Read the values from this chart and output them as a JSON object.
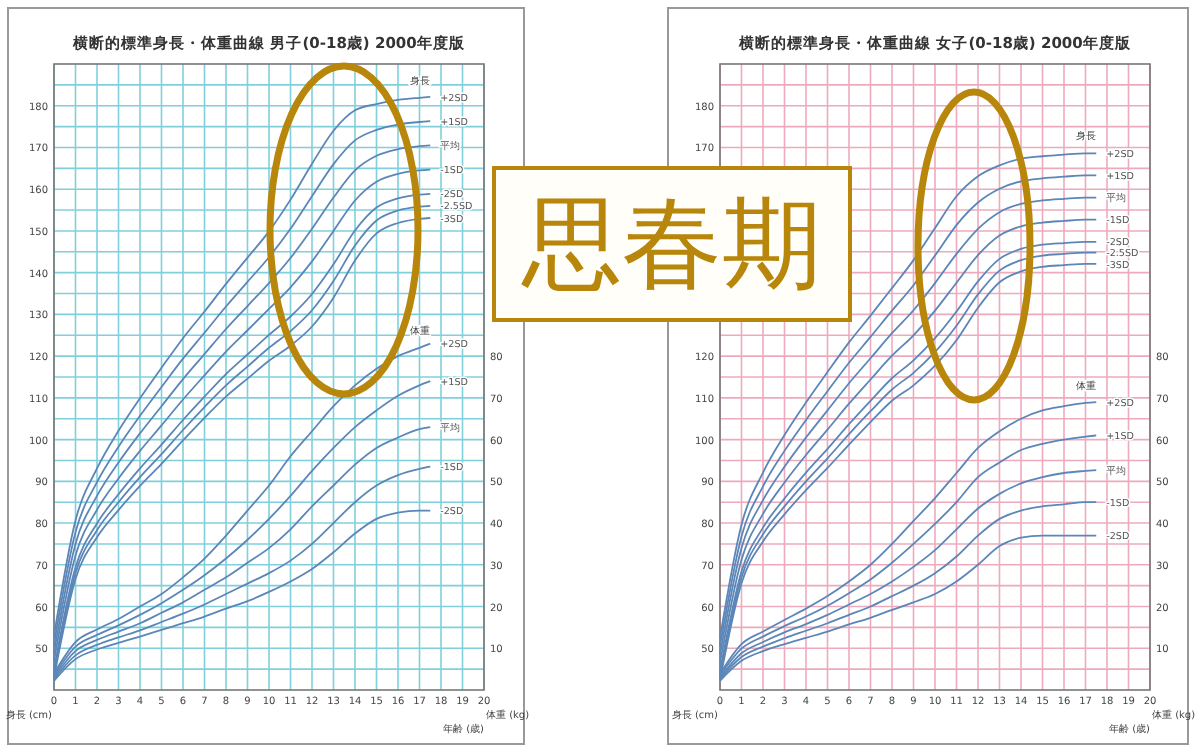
{
  "chart_data": [
    {
      "type": "line",
      "title": "横断的標準身長・体重曲線 男子(0-18歳) 2000年度版",
      "xlabel": "年齢 (歳)",
      "ylabel": "身長 (cm)",
      "y2label": "体重 (kg)",
      "grid": true,
      "x": [
        0,
        1,
        2,
        3,
        4,
        5,
        6,
        7,
        8,
        9,
        10,
        11,
        12,
        13,
        14,
        15,
        16,
        17,
        17.5
      ],
      "xlim": [
        0,
        20
      ],
      "xticks": [
        0,
        1,
        2,
        3,
        4,
        5,
        6,
        7,
        8,
        9,
        10,
        11,
        12,
        13,
        14,
        15,
        16,
        17,
        18,
        19,
        20
      ],
      "ylim": [
        40,
        190
      ],
      "yticks": [
        {
          "value": 45,
          "label": null
        },
        50,
        {
          "value": 55,
          "label": null
        },
        60,
        {
          "value": 65,
          "label": null
        },
        70,
        {
          "value": 75,
          "label": null
        },
        80,
        {
          "value": 85,
          "label": null
        },
        90,
        {
          "value": 95,
          "label": null
        },
        100,
        {
          "value": 105,
          "label": null
        },
        110,
        {
          "value": 115,
          "label": null
        },
        120,
        {
          "value": 125,
          "label": null
        },
        130,
        {
          "value": 135,
          "label": null
        },
        140,
        {
          "value": 145,
          "label": null
        },
        150,
        {
          "value": 155,
          "label": null
        },
        160,
        {
          "value": 165,
          "label": null
        },
        170,
        {
          "value": 175,
          "label": null
        },
        180,
        {
          "value": 185,
          "label": null
        }
      ],
      "y2lim": [
        0,
        150
      ],
      "y2ticks": [
        10,
        20,
        30,
        40,
        50,
        60,
        70,
        80
      ],
      "annotations": [
        "身長",
        "体重"
      ],
      "series": [
        {
          "name": "+2SD",
          "color": "#5b86b8",
          "values": [
            53,
            80.6,
            93.1,
            102.1,
            109.9,
            117.2,
            124.3,
            130.7,
            137.3,
            143.6,
            149.9,
            157.5,
            166.1,
            174,
            178.9,
            180.4,
            181.4,
            181.9,
            182.1
          ]
        },
        {
          "name": "+1SD",
          "color": "#5b86b8",
          "values": [
            51,
            77.8,
            89.8,
            98.3,
            105.7,
            112.6,
            119.4,
            125.6,
            131.9,
            137.8,
            143.7,
            150.5,
            158.3,
            166,
            171.7,
            174.2,
            175.5,
            176.1,
            176.3
          ]
        },
        {
          "name": "平均",
          "color": "#5b86b8",
          "values": [
            49,
            75,
            86.5,
            94.5,
            101.5,
            108,
            114.5,
            120.5,
            126.5,
            132,
            137.5,
            143.5,
            150.5,
            158,
            164.5,
            168,
            169.6,
            170.3,
            170.5
          ]
        },
        {
          "name": "-1SD",
          "color": "#5b86b8",
          "values": [
            47,
            72.2,
            83.2,
            90.7,
            97.3,
            103.4,
            109.6,
            115.4,
            121.1,
            126.2,
            131.3,
            136.5,
            142.7,
            150,
            157.3,
            161.8,
            163.7,
            164.5,
            164.7
          ]
        },
        {
          "name": "-2SD",
          "color": "#5b86b8",
          "values": [
            45,
            69.4,
            79.9,
            86.9,
            93.1,
            98.8,
            104.7,
            110.3,
            115.7,
            120.4,
            125.1,
            129.5,
            134.9,
            142,
            150.1,
            155.6,
            157.8,
            158.7,
            158.9
          ]
        },
        {
          "name": "-2.5SD",
          "color": "#5b86b8",
          "values": [
            44,
            68,
            78.3,
            85,
            91,
            96.5,
            102.3,
            107.8,
            113,
            117.5,
            122,
            126,
            131,
            138,
            146.5,
            152.5,
            154.9,
            155.8,
            156
          ]
        },
        {
          "name": "-3SD",
          "color": "#5b86b8",
          "values": [
            43,
            66.6,
            76.6,
            83.1,
            88.9,
            94.2,
            99.8,
            105.2,
            110.3,
            114.6,
            118.9,
            122.5,
            127.1,
            134,
            142.9,
            149.4,
            151.9,
            152.9,
            153.1
          ]
        },
        {
          "name": "+2SD",
          "color": "#5b86b8",
          "axis": "y2",
          "values": [
            4,
            11.5,
            14.5,
            17,
            20,
            23,
            27,
            31.5,
            37,
            43,
            49,
            56,
            62,
            68,
            73,
            77,
            80,
            82,
            83
          ]
        },
        {
          "name": "+1SD",
          "color": "#5b86b8",
          "axis": "y2",
          "values": [
            3.5,
            10.4,
            13.2,
            15.5,
            18,
            20.8,
            24,
            27.5,
            31.5,
            36,
            41,
            46.5,
            52.5,
            58,
            63,
            67,
            70.5,
            73,
            74
          ]
        },
        {
          "name": "平均",
          "color": "#5b86b8",
          "axis": "y2",
          "values": [
            3,
            9.3,
            12,
            14,
            16,
            18.5,
            21,
            24,
            27,
            30.5,
            34,
            38.5,
            44,
            49,
            54,
            58,
            60.5,
            62.5,
            63
          ]
        },
        {
          "name": "-1SD",
          "color": "#5b86b8",
          "axis": "y2",
          "values": [
            2.6,
            8.3,
            10.8,
            12.6,
            14.3,
            16.3,
            18.3,
            20.5,
            23,
            25.5,
            28,
            31,
            35,
            40,
            45,
            49,
            51.5,
            53,
            53.5
          ]
        },
        {
          "name": "-2SD",
          "color": "#5b86b8",
          "axis": "y2",
          "values": [
            2.2,
            7.4,
            9.7,
            11.3,
            12.8,
            14.4,
            16,
            17.6,
            19.5,
            21.3,
            23.5,
            26,
            29,
            33,
            37.5,
            41,
            42.5,
            43,
            43
          ]
        }
      ]
    },
    {
      "type": "line",
      "title": "横断的標準身長・体重曲線 女子(0-18歳) 2000年度版",
      "xlabel": "年齢 (歳)",
      "ylabel": "身長 (cm)",
      "y2label": "体重 (kg)",
      "grid": true,
      "x": [
        0,
        1,
        2,
        3,
        4,
        5,
        6,
        7,
        8,
        9,
        10,
        11,
        12,
        13,
        14,
        15,
        16,
        17,
        17.5
      ],
      "xlim": [
        0,
        20
      ],
      "xticks": [
        0,
        1,
        2,
        3,
        4,
        5,
        6,
        7,
        8,
        9,
        10,
        11,
        12,
        13,
        14,
        15,
        16,
        17,
        18,
        19,
        20
      ],
      "ylim": [
        40,
        190
      ],
      "yticks": [
        {
          "value": 45,
          "label": null
        },
        50,
        {
          "value": 55,
          "label": null
        },
        60,
        {
          "value": 65,
          "label": null
        },
        70,
        {
          "value": 75,
          "label": null
        },
        80,
        {
          "value": 85,
          "label": null
        },
        90,
        {
          "value": 95,
          "label": null
        },
        100,
        {
          "value": 105,
          "label": null
        },
        110,
        {
          "value": 115,
          "label": null
        },
        120,
        {
          "value": 125,
          "label": null
        },
        {
          "value": 130,
          "label": null
        },
        {
          "value": 135,
          "label": null
        },
        {
          "value": 140,
          "label": null
        },
        {
          "value": 145,
          "label": null
        },
        {
          "value": 150,
          "label": null
        },
        {
          "value": 155,
          "label": null
        },
        {
          "value": 160,
          "label": null
        },
        {
          "value": 165,
          "label": null
        },
        170,
        {
          "value": 175,
          "label": null
        },
        180,
        {
          "value": 185,
          "label": null
        }
      ],
      "y2lim": [
        0,
        150
      ],
      "y2ticks": [
        10,
        20,
        30,
        40,
        50,
        60,
        70,
        80
      ],
      "annotations": [
        "身長",
        "体重"
      ],
      "series": [
        {
          "name": "+2SD",
          "color": "#5b86b8",
          "values": [
            52.5,
            79.6,
            92.1,
            101.1,
            108.9,
            116.2,
            123.3,
            129.7,
            136.3,
            143,
            150.7,
            158.3,
            163.1,
            165.7,
            167.3,
            167.9,
            168.3,
            168.6,
            168.6
          ]
        },
        {
          "name": "+1SD",
          "color": "#5b86b8",
          "values": [
            50.5,
            76.8,
            88.8,
            97.3,
            104.7,
            111.6,
            118.4,
            124.6,
            130.9,
            137,
            144.1,
            151.4,
            156.8,
            160.1,
            161.9,
            162.6,
            163,
            163.3,
            163.3
          ]
        },
        {
          "name": "平均",
          "color": "#5b86b8",
          "values": [
            48.5,
            74,
            85.5,
            93.5,
            100.5,
            107,
            113.5,
            119.5,
            125.5,
            131,
            137.5,
            144.5,
            150.5,
            154.5,
            156.5,
            157.3,
            157.7,
            158,
            158
          ]
        },
        {
          "name": "-1SD",
          "color": "#5b86b8",
          "values": [
            46.5,
            71.2,
            82.2,
            89.7,
            96.3,
            102.4,
            108.6,
            114.4,
            120.1,
            125,
            130.9,
            137.6,
            144.2,
            148.9,
            151.1,
            152,
            152.4,
            152.7,
            152.7
          ]
        },
        {
          "name": "-2SD",
          "color": "#5b86b8",
          "values": [
            44.5,
            68.4,
            78.9,
            85.9,
            92.1,
            97.8,
            103.7,
            109.3,
            114.7,
            119,
            124.3,
            130.7,
            137.9,
            143.3,
            145.7,
            146.7,
            147.1,
            147.4,
            147.4
          ]
        },
        {
          "name": "-2.5SD",
          "color": "#5b86b8",
          "values": [
            43.5,
            67,
            77.3,
            84,
            90,
            95.5,
            101.3,
            106.8,
            112,
            116,
            121,
            127.3,
            134.8,
            140.5,
            143,
            144.1,
            144.5,
            144.8,
            144.8
          ]
        },
        {
          "name": "-3SD",
          "color": "#5b86b8",
          "values": [
            42.5,
            65.6,
            75.6,
            82.1,
            87.9,
            93.2,
            98.8,
            104.2,
            109.3,
            113,
            117.7,
            123.8,
            131.6,
            137.7,
            140.3,
            141.4,
            141.8,
            142.1,
            142.1
          ]
        },
        {
          "name": "+2SD",
          "color": "#5b86b8",
          "axis": "y2",
          "values": [
            3.9,
            11,
            14,
            16.8,
            19.5,
            22.5,
            26,
            30,
            35,
            40.5,
            46,
            52,
            58,
            62,
            65,
            67,
            68,
            68.8,
            69
          ]
        },
        {
          "name": "+1SD",
          "color": "#5b86b8",
          "axis": "y2",
          "values": [
            3.5,
            9.9,
            12.8,
            15.3,
            17.6,
            20.2,
            23.2,
            26.5,
            30.5,
            35,
            39.8,
            45,
            51,
            54.5,
            57.5,
            59,
            60,
            60.7,
            61
          ]
        },
        {
          "name": "平均",
          "color": "#5b86b8",
          "axis": "y2",
          "values": [
            3,
            8.8,
            11.5,
            13.8,
            15.8,
            18,
            20.5,
            23,
            26,
            29.5,
            33.5,
            38.5,
            43.5,
            47,
            49.5,
            51,
            52,
            52.5,
            52.7
          ]
        },
        {
          "name": "-1SD",
          "color": "#5b86b8",
          "axis": "y2",
          "values": [
            2.6,
            7.9,
            10.4,
            12.4,
            14.2,
            16,
            18,
            20,
            22.5,
            25,
            28,
            32,
            37,
            41,
            43,
            44,
            44.5,
            45,
            45
          ]
        },
        {
          "name": "-2SD",
          "color": "#5b86b8",
          "axis": "y2",
          "values": [
            2.2,
            7,
            9.3,
            11,
            12.5,
            14,
            15.7,
            17.3,
            19.2,
            21,
            23,
            26,
            30,
            34.5,
            36.5,
            37,
            37,
            37,
            37
          ]
        }
      ]
    },
    {
      "type": "other",
      "annotations": [
        "思春期"
      ]
    }
  ]
}
